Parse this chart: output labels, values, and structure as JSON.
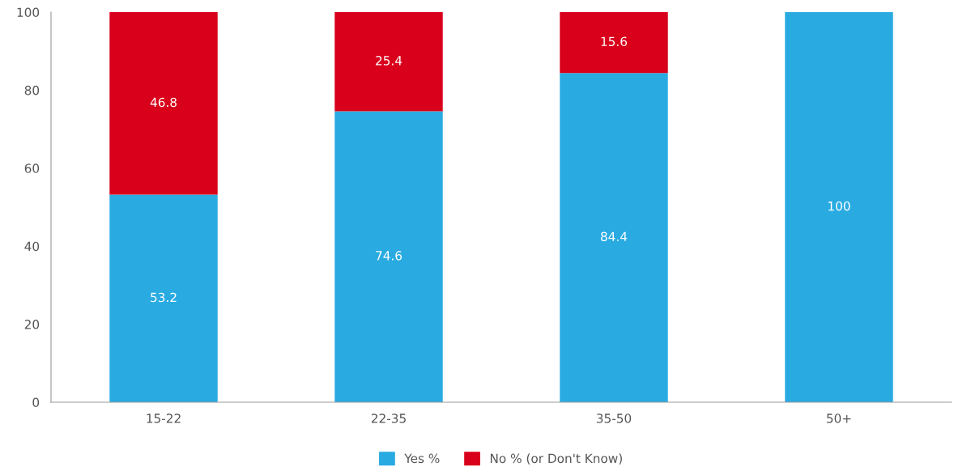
{
  "chart_data": {
    "type": "bar",
    "stacked": true,
    "categories": [
      "15-22",
      "22-35",
      "35-50",
      "50+"
    ],
    "series": [
      {
        "name": "Yes %",
        "color": "#29abe2",
        "values": [
          53.2,
          74.6,
          84.4,
          100
        ],
        "value_labels": [
          "53.2",
          "74.6",
          "84.4",
          "100"
        ]
      },
      {
        "name": "No % (or Don't Know)",
        "color": "#d9001b",
        "values": [
          46.8,
          25.4,
          15.6,
          0
        ],
        "value_labels": [
          "46.8",
          "25.4",
          "15.6",
          null
        ]
      }
    ],
    "ylim": [
      0,
      100
    ],
    "yticks": [
      0,
      20,
      40,
      60,
      80,
      100
    ],
    "grid": false,
    "legend": "bottom"
  }
}
